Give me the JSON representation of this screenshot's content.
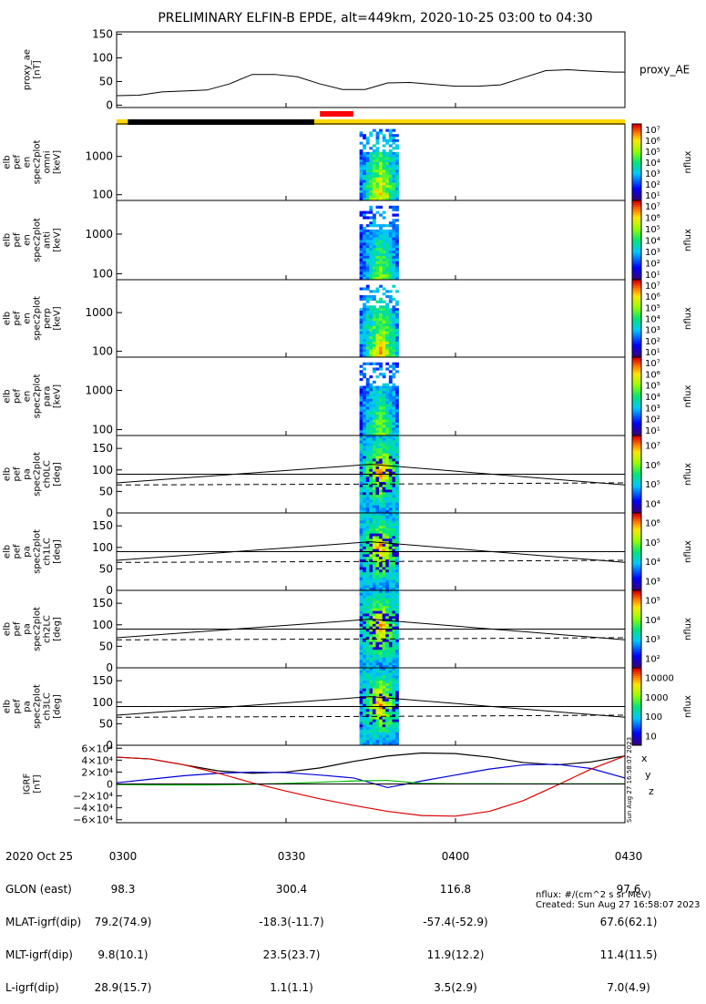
{
  "title": "PRELIMINARY ELFIN-B EPDE, alt=449km, 2020-10-25 03:00 to 04:30",
  "colors": {
    "day_bar": "#ffd700",
    "night_bar": "#000000",
    "science_zone": "#ff0000",
    "igrf_x": "#000000",
    "igrf_y": "#0000dd",
    "igrf_z": "#dd0000",
    "igrf_extra": "#00bb00"
  },
  "chart_data": [
    {
      "type": "line",
      "name": "proxy_ae",
      "ylabel_lines": [
        "proxy_ae",
        "[nT]"
      ],
      "right_label": "proxy_AE",
      "ylim": [
        -5,
        155
      ],
      "yticks": [
        "0",
        "50",
        "100",
        "150"
      ],
      "x": [
        "03:00",
        "03:04",
        "03:08",
        "03:12",
        "03:16",
        "03:20",
        "03:24",
        "03:28",
        "03:32",
        "03:36",
        "03:40",
        "03:44",
        "03:48",
        "03:52",
        "03:56",
        "04:00",
        "04:04",
        "04:08",
        "04:12",
        "04:16",
        "04:20",
        "04:24",
        "04:28",
        "04:30"
      ],
      "y": [
        20,
        21,
        28,
        30,
        32,
        45,
        65,
        65,
        60,
        45,
        33,
        33,
        47,
        48,
        44,
        40,
        40,
        43,
        58,
        73,
        75,
        72,
        70,
        70
      ]
    },
    {
      "type": "heatmap",
      "name": "spec_omni",
      "ylabel_lines": [
        "elb",
        "pef",
        "en",
        "spec2plot",
        "omni",
        "[keV]"
      ],
      "yticks": [
        "100",
        "1000"
      ],
      "active_window": [
        "03:43",
        "03:48"
      ],
      "colorbar": {
        "ticks": [
          "10¹",
          "10²",
          "10³",
          "10⁴",
          "10⁵",
          "10⁶",
          "10⁷"
        ],
        "label": "nflux"
      }
    },
    {
      "type": "heatmap",
      "name": "spec_anti",
      "ylabel_lines": [
        "elb",
        "pef",
        "en",
        "spec2plot",
        "anti",
        "[keV]"
      ],
      "yticks": [
        "100",
        "1000"
      ],
      "active_window": [
        "03:43",
        "03:48"
      ],
      "colorbar": {
        "ticks": [
          "10¹",
          "10²",
          "10³",
          "10⁴",
          "10⁵",
          "10⁶",
          "10⁷"
        ],
        "label": "nflux"
      }
    },
    {
      "type": "heatmap",
      "name": "spec_perp",
      "ylabel_lines": [
        "elb",
        "pef",
        "en",
        "spec2plot",
        "perp",
        "[keV]"
      ],
      "yticks": [
        "100",
        "1000"
      ],
      "active_window": [
        "03:43",
        "03:48"
      ],
      "colorbar": {
        "ticks": [
          "10¹",
          "10²",
          "10³",
          "10⁴",
          "10⁵",
          "10⁶",
          "10⁷"
        ],
        "label": "nflux"
      }
    },
    {
      "type": "heatmap",
      "name": "spec_para",
      "ylabel_lines": [
        "elb",
        "pef",
        "en",
        "spec2plot",
        "para",
        "[keV]"
      ],
      "yticks": [
        "100",
        "1000"
      ],
      "active_window": [
        "03:43",
        "03:48"
      ],
      "colorbar": {
        "ticks": [
          "10¹",
          "10²",
          "10³",
          "10⁴",
          "10⁵",
          "10⁶",
          "10⁷"
        ],
        "label": "nflux"
      }
    },
    {
      "type": "heatmap",
      "name": "pa_ch0",
      "ylabel_lines": [
        "elb",
        "pef",
        "pa",
        "spec2plot",
        "ch0LC",
        "[deg]"
      ],
      "yticks": [
        "0",
        "50",
        "100",
        "150"
      ],
      "ylim": [
        0,
        180
      ],
      "active_window": [
        "03:43",
        "03:48"
      ],
      "lc_lines": {
        "x": [
          "03:00",
          "03:45",
          "04:30"
        ],
        "lc": [
          70,
          113,
          65
        ],
        "alc": [
          65,
          67,
          70
        ],
        "solid_at": 90
      },
      "colorbar": {
        "ticks": [
          "10⁴",
          "10⁵",
          "10⁶",
          "10⁷"
        ],
        "label": "nflux"
      }
    },
    {
      "type": "heatmap",
      "name": "pa_ch1",
      "ylabel_lines": [
        "elb",
        "pef",
        "pa",
        "spec2plot",
        "ch1LC",
        "[deg]"
      ],
      "yticks": [
        "0",
        "50",
        "100",
        "150"
      ],
      "ylim": [
        0,
        180
      ],
      "active_window": [
        "03:43",
        "03:48"
      ],
      "lc_lines": {
        "x": [
          "03:00",
          "03:45",
          "04:30"
        ],
        "lc": [
          70,
          113,
          65
        ],
        "alc": [
          65,
          67,
          70
        ],
        "solid_at": 90
      },
      "colorbar": {
        "ticks": [
          "10³",
          "10⁴",
          "10⁵",
          "10⁶"
        ],
        "label": "nflux"
      }
    },
    {
      "type": "heatmap",
      "name": "pa_ch2",
      "ylabel_lines": [
        "elb",
        "pef",
        "pa",
        "spec2plot",
        "ch2LC",
        "[deg]"
      ],
      "yticks": [
        "0",
        "50",
        "100",
        "150"
      ],
      "ylim": [
        0,
        180
      ],
      "active_window": [
        "03:43",
        "03:48"
      ],
      "lc_lines": {
        "x": [
          "03:00",
          "03:45",
          "04:30"
        ],
        "lc": [
          70,
          113,
          65
        ],
        "alc": [
          65,
          67,
          70
        ],
        "solid_at": 90
      },
      "colorbar": {
        "ticks": [
          "10²",
          "10³",
          "10⁴",
          "10⁵"
        ],
        "label": "nflux"
      }
    },
    {
      "type": "heatmap",
      "name": "pa_ch3",
      "ylabel_lines": [
        "elb",
        "pef",
        "pa",
        "spec2plot",
        "ch3LC",
        "[deg]"
      ],
      "yticks": [
        "0",
        "50",
        "100",
        "150"
      ],
      "ylim": [
        0,
        180
      ],
      "active_window": [
        "03:43",
        "03:48"
      ],
      "lc_lines": {
        "x": [
          "03:00",
          "03:45",
          "04:30"
        ],
        "lc": [
          70,
          113,
          65
        ],
        "alc": [
          65,
          67,
          70
        ],
        "solid_at": 90
      },
      "colorbar": {
        "ticks": [
          "10",
          "100",
          "1000",
          "10000"
        ],
        "label": "nflux"
      }
    },
    {
      "type": "line",
      "name": "igrf",
      "ylabel_lines": [
        "IGRF",
        "[nT]"
      ],
      "ylim": [
        -65000,
        65000
      ],
      "yticks": [
        "−6×10⁴",
        "−4×10⁴",
        "−2×10⁴",
        "0",
        "2×10⁴",
        "4×10⁴",
        "6×10⁴"
      ],
      "ytick_values": [
        -60000,
        -40000,
        -20000,
        0,
        20000,
        40000,
        60000
      ],
      "right_labels": [
        "x",
        "y",
        "z"
      ],
      "x": [
        "03:00",
        "03:06",
        "03:12",
        "03:18",
        "03:24",
        "03:30",
        "03:36",
        "03:42",
        "03:48",
        "03:54",
        "04:00",
        "04:06",
        "04:12",
        "04:18",
        "04:24",
        "04:30"
      ],
      "series": [
        {
          "name": "x",
          "values": [
            45000,
            42000,
            32000,
            22000,
            18000,
            20000,
            27000,
            38000,
            47000,
            52000,
            51000,
            45000,
            36000,
            32000,
            37000,
            47000
          ]
        },
        {
          "name": "y",
          "values": [
            2000,
            8000,
            14000,
            18000,
            20000,
            19000,
            15000,
            10000,
            -6000,
            5000,
            15000,
            25000,
            32000,
            33000,
            26000,
            10000
          ]
        },
        {
          "name": "z",
          "values": [
            45000,
            42000,
            32000,
            18000,
            2000,
            -12000,
            -25000,
            -36000,
            -46000,
            -53000,
            -54000,
            -46000,
            -28000,
            -2000,
            25000,
            47000
          ]
        },
        {
          "name": "extra",
          "values": [
            -1000,
            -1500,
            -1800,
            -1500,
            -500,
            1000,
            3000,
            5000,
            6000,
            1000,
            500,
            500,
            300,
            300,
            200,
            200
          ]
        }
      ]
    }
  ],
  "footer": {
    "row_labels": [
      "2020 Oct 25",
      "GLON (east)",
      "MLAT-igrf(dip)",
      "MLT-igrf(dip)",
      "L-igrf(dip)"
    ],
    "times": [
      "0300",
      "0330",
      "0400",
      "0430"
    ],
    "columns": [
      [
        "98.3",
        "79.2(74.9)",
        "9.8(10.1)",
        "28.9(15.7)"
      ],
      [
        "300.4",
        "-18.3(-11.7)",
        "23.5(23.7)",
        "1.1(1.1)"
      ],
      [
        "116.8",
        "-57.4(-52.9)",
        "11.9(12.2)",
        "3.5(2.9)"
      ],
      [
        "97.6",
        "67.6(62.1)",
        "11.4(11.5)",
        "7.0(4.9)"
      ]
    ],
    "nflux_unit": "nflux: #/(cm^2 s sr MeV)",
    "created": "Created: Sun Aug 27 16:58:07 2023",
    "vertical_stamp": "Sun Aug 27 16:58:07 2023"
  }
}
